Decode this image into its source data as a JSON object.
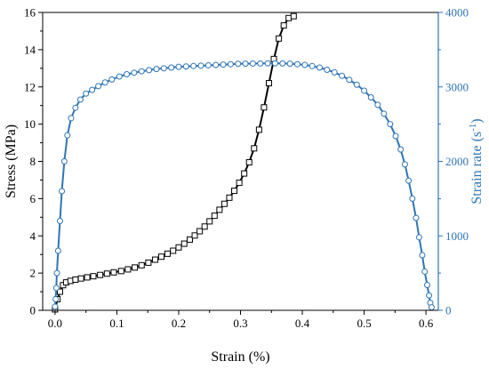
{
  "chart_data": {
    "type": "line",
    "title": "",
    "xlabel": "Strain (%)",
    "ylabel_left": "Stress (MPa)",
    "ylabel_right_main": "Strain rate (s",
    "ylabel_right_sup": "-1",
    "ylabel_right_close": ")",
    "xlim": [
      -0.02,
      0.62
    ],
    "ylim_left": [
      0,
      16
    ],
    "ylim_right": [
      0,
      4000
    ],
    "x_ticks": [
      0.0,
      0.1,
      0.2,
      0.3,
      0.4,
      0.5,
      0.6
    ],
    "x_tick_labels": [
      "0.0",
      "0.1",
      "0.2",
      "0.3",
      "0.4",
      "0.5",
      "0.6"
    ],
    "y_left_ticks": [
      0,
      2,
      4,
      6,
      8,
      10,
      12,
      14,
      16
    ],
    "y_left_tick_labels": [
      "0",
      "2",
      "4",
      "6",
      "8",
      "10",
      "12",
      "14",
      "16"
    ],
    "y_right_ticks": [
      0,
      1000,
      2000,
      3000,
      4000
    ],
    "y_right_tick_labels": [
      "0",
      "1000",
      "2000",
      "3000",
      "4000"
    ],
    "grid": false,
    "legend": "none",
    "colors": {
      "stress": "#000000",
      "strain_rate": "#2e75b6",
      "right_axis": "#2e75b6"
    },
    "series": [
      {
        "axis": "left",
        "marker": "square",
        "x": [
          0.0,
          0.004,
          0.008,
          0.013,
          0.018,
          0.025,
          0.033,
          0.042,
          0.052,
          0.062,
          0.073,
          0.084,
          0.095,
          0.107,
          0.118,
          0.129,
          0.14,
          0.151,
          0.162,
          0.172,
          0.182,
          0.191,
          0.2,
          0.209,
          0.218,
          0.226,
          0.234,
          0.242,
          0.25,
          0.258,
          0.266,
          0.274,
          0.282,
          0.29,
          0.298,
          0.306,
          0.314,
          0.322,
          0.33,
          0.338,
          0.346,
          0.354,
          0.362,
          0.37,
          0.378,
          0.386
        ],
        "y": [
          0.05,
          0.6,
          1.0,
          1.35,
          1.5,
          1.58,
          1.65,
          1.71,
          1.77,
          1.83,
          1.9,
          1.97,
          2.04,
          2.11,
          2.2,
          2.3,
          2.42,
          2.56,
          2.72,
          2.88,
          3.04,
          3.2,
          3.38,
          3.58,
          3.8,
          4.02,
          4.25,
          4.5,
          4.78,
          5.08,
          5.4,
          5.72,
          6.05,
          6.42,
          6.85,
          7.35,
          7.95,
          8.7,
          9.7,
          10.9,
          12.2,
          13.5,
          14.6,
          15.3,
          15.7,
          15.8
        ]
      },
      {
        "axis": "right",
        "marker": "circle",
        "x": [
          0.0,
          0.001,
          0.002,
          0.003,
          0.005,
          0.008,
          0.011,
          0.015,
          0.02,
          0.026,
          0.033,
          0.041,
          0.05,
          0.06,
          0.07,
          0.081,
          0.092,
          0.104,
          0.116,
          0.128,
          0.14,
          0.152,
          0.164,
          0.176,
          0.188,
          0.2,
          0.212,
          0.224,
          0.236,
          0.248,
          0.26,
          0.272,
          0.284,
          0.296,
          0.308,
          0.32,
          0.332,
          0.344,
          0.356,
          0.368,
          0.38,
          0.392,
          0.404,
          0.416,
          0.428,
          0.44,
          0.452,
          0.464,
          0.476,
          0.488,
          0.5,
          0.511,
          0.522,
          0.532,
          0.542,
          0.551,
          0.559,
          0.566,
          0.572,
          0.578,
          0.584,
          0.589,
          0.594,
          0.598,
          0.602,
          0.605,
          0.607,
          0.609
        ],
        "y": [
          50,
          150,
          300,
          500,
          800,
          1200,
          1600,
          2000,
          2350,
          2580,
          2720,
          2830,
          2910,
          2960,
          3010,
          3060,
          3100,
          3140,
          3170,
          3190,
          3210,
          3225,
          3240,
          3250,
          3260,
          3270,
          3275,
          3280,
          3285,
          3290,
          3295,
          3300,
          3305,
          3310,
          3312,
          3314,
          3315,
          3316,
          3316,
          3315,
          3312,
          3305,
          3295,
          3280,
          3260,
          3230,
          3195,
          3150,
          3095,
          3030,
          2950,
          2860,
          2760,
          2640,
          2500,
          2340,
          2160,
          1960,
          1740,
          1500,
          1240,
          980,
          740,
          520,
          340,
          200,
          100,
          40
        ]
      }
    ]
  }
}
